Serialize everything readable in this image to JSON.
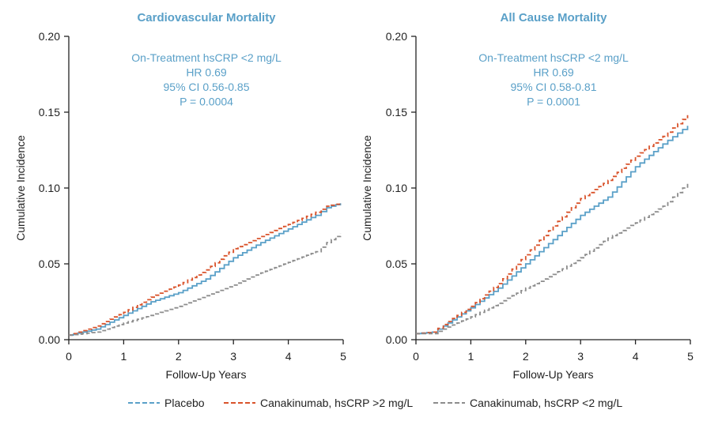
{
  "legend": {
    "items": [
      {
        "label": "Placebo",
        "color": "#5aa0c8",
        "dash": "dashed"
      },
      {
        "label": "Canakinumab, hsCRP >2 mg/L",
        "color": "#d9532b",
        "dash": "dashed"
      },
      {
        "label": "Canakinumab, hsCRP <2 mg/L",
        "color": "#8c8c8c",
        "dash": "dashed"
      }
    ]
  },
  "colors": {
    "title": "#5aa0c8",
    "annotation": "#5aa0c8",
    "axis": "#222222",
    "placebo": "#5aa0c8",
    "high": "#d9532b",
    "low": "#8c8c8c"
  },
  "chart_data": [
    {
      "type": "line",
      "title": "Cardiovascular Mortality",
      "xlabel": "Follow-Up Years",
      "ylabel": "Cumulative Incidence",
      "xlim": [
        0,
        5
      ],
      "ylim": [
        0,
        0.2
      ],
      "xticks": [
        "0",
        "1",
        "2",
        "3",
        "4",
        "5"
      ],
      "yticks": [
        "0.00",
        "0.05",
        "0.10",
        "0.15",
        "0.20"
      ],
      "annotation": [
        "On-Treatment hsCRP <2 mg/L",
        "HR 0.69",
        "95% CI 0.56-0.85",
        "P = 0.0004"
      ],
      "series": [
        {
          "name": "Placebo",
          "style": "solid",
          "x": [
            0,
            0.5,
            1.0,
            1.5,
            2.0,
            2.5,
            3.0,
            3.5,
            4.0,
            4.5,
            4.7,
            4.95
          ],
          "y": [
            0.003,
            0.007,
            0.016,
            0.025,
            0.031,
            0.04,
            0.054,
            0.064,
            0.073,
            0.082,
            0.087,
            0.09
          ]
        },
        {
          "name": "Canakinumab, hsCRP >2 mg/L",
          "style": "dashed",
          "x": [
            0,
            0.5,
            1.0,
            1.5,
            2.0,
            2.5,
            3.0,
            3.5,
            4.0,
            4.5,
            4.7,
            4.95
          ],
          "y": [
            0.003,
            0.009,
            0.018,
            0.028,
            0.036,
            0.046,
            0.06,
            0.068,
            0.076,
            0.084,
            0.088,
            0.09
          ]
        },
        {
          "name": "Canakinumab, hsCRP <2 mg/L",
          "style": "dashed",
          "x": [
            0,
            0.5,
            1.0,
            1.5,
            2.0,
            2.5,
            3.0,
            3.5,
            4.0,
            4.5,
            4.7,
            4.95
          ],
          "y": [
            0.003,
            0.005,
            0.011,
            0.016,
            0.022,
            0.029,
            0.036,
            0.044,
            0.051,
            0.058,
            0.064,
            0.07
          ]
        }
      ]
    },
    {
      "type": "line",
      "title": "All Cause Mortality",
      "xlabel": "Follow-Up Years",
      "ylabel": "Cumulative Incidence",
      "xlim": [
        0,
        5
      ],
      "ylim": [
        0,
        0.2
      ],
      "xticks": [
        "0",
        "1",
        "2",
        "3",
        "4",
        "5"
      ],
      "yticks": [
        "0.00",
        "0.05",
        "0.10",
        "0.15",
        "0.20"
      ],
      "annotation": [
        "On-Treatment hsCRP <2 mg/L",
        "HR 0.69",
        "95% CI 0.58-0.81",
        "P = 0.0001"
      ],
      "series": [
        {
          "name": "Placebo",
          "style": "solid",
          "x": [
            0,
            0.3,
            0.5,
            1.0,
            1.5,
            2.0,
            2.5,
            3.0,
            3.5,
            4.0,
            4.5,
            4.95
          ],
          "y": [
            0.004,
            0.005,
            0.009,
            0.021,
            0.034,
            0.05,
            0.066,
            0.082,
            0.094,
            0.114,
            0.129,
            0.141
          ]
        },
        {
          "name": "Canakinumab, hsCRP >2 mg/L",
          "style": "dashed",
          "x": [
            0,
            0.3,
            0.5,
            1.0,
            1.5,
            2.0,
            2.5,
            3.0,
            3.5,
            4.0,
            4.5,
            4.95
          ],
          "y": [
            0.004,
            0.005,
            0.01,
            0.022,
            0.037,
            0.056,
            0.075,
            0.093,
            0.105,
            0.121,
            0.134,
            0.148
          ]
        },
        {
          "name": "Canakinumab, hsCRP <2 mg/L",
          "style": "dashed",
          "x": [
            0,
            0.3,
            0.5,
            1.0,
            1.5,
            2.0,
            2.5,
            3.0,
            3.5,
            4.0,
            4.5,
            4.95
          ],
          "y": [
            0.004,
            0.004,
            0.007,
            0.015,
            0.024,
            0.034,
            0.043,
            0.054,
            0.067,
            0.077,
            0.088,
            0.103
          ]
        }
      ]
    }
  ]
}
